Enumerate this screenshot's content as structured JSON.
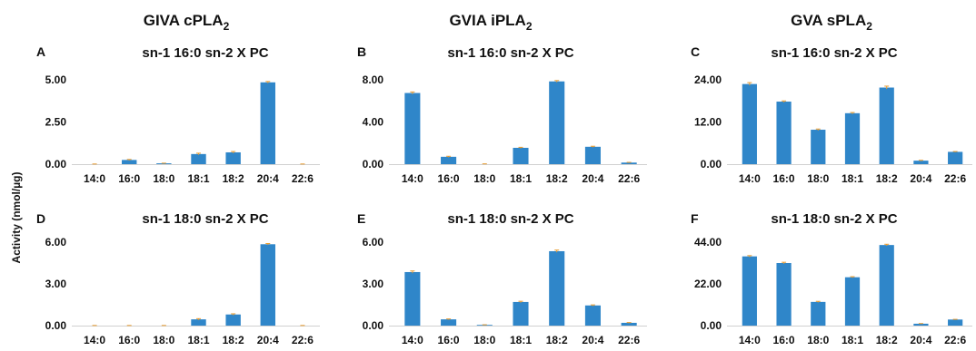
{
  "figure": {
    "ylabel": "Activity (nmol/µg)",
    "columns": [
      {
        "title_main": "GIVA cPLA",
        "title_sub": "2"
      },
      {
        "title_main": "GVIA iPLA",
        "title_sub": "2"
      },
      {
        "title_main": "GVA sPLA",
        "title_sub": "2"
      }
    ],
    "bar_color": "#2f86c9",
    "error_color": "#e69a2e"
  },
  "chart_data": [
    {
      "type": "bar",
      "panel": "A",
      "title": "sn-1 16:0 sn-2 X PC",
      "categories": [
        "14:0",
        "16:0",
        "18:0",
        "18:1",
        "18:2",
        "20:4",
        "22:6"
      ],
      "values": [
        0.0,
        0.25,
        0.05,
        0.6,
        0.7,
        4.85,
        0.0
      ],
      "errors": [
        0.01,
        0.03,
        0.01,
        0.05,
        0.05,
        0.05,
        0.01
      ],
      "yticks": [
        "0.00",
        "2.50",
        "5.00"
      ],
      "ylim": [
        0,
        5
      ]
    },
    {
      "type": "bar",
      "panel": "B",
      "title": "sn-1 16:0 sn-2 X PC",
      "categories": [
        "14:0",
        "16:0",
        "18:0",
        "18:1",
        "18:2",
        "20:4",
        "22:6"
      ],
      "values": [
        6.75,
        0.7,
        0.02,
        1.55,
        7.85,
        1.65,
        0.15
      ],
      "errors": [
        0.1,
        0.05,
        0.01,
        0.05,
        0.08,
        0.05,
        0.02
      ],
      "yticks": [
        "0.00",
        "4.00",
        "8.00"
      ],
      "ylim": [
        0,
        8
      ]
    },
    {
      "type": "bar",
      "panel": "C",
      "title": "sn-1 16:0 sn-2 X PC",
      "categories": [
        "14:0",
        "16:0",
        "18:0",
        "18:1",
        "18:2",
        "20:4",
        "22:6"
      ],
      "values": [
        22.8,
        17.8,
        9.8,
        14.5,
        21.8,
        1.0,
        3.5
      ],
      "errors": [
        0.4,
        0.2,
        0.2,
        0.2,
        0.4,
        0.1,
        0.1
      ],
      "yticks": [
        "0.00",
        "12.00",
        "24.00"
      ],
      "ylim": [
        0,
        24
      ]
    },
    {
      "type": "bar",
      "panel": "D",
      "title": "sn-1 18:0 sn-2 X PC",
      "categories": [
        "14:0",
        "16:0",
        "18:0",
        "18:1",
        "18:2",
        "20:4",
        "22:6"
      ],
      "values": [
        0.0,
        0.0,
        0.0,
        0.45,
        0.8,
        5.85,
        0.0
      ],
      "errors": [
        0.01,
        0.01,
        0.01,
        0.05,
        0.05,
        0.05,
        0.01
      ],
      "yticks": [
        "0.00",
        "3.00",
        "6.00"
      ],
      "ylim": [
        0,
        6
      ]
    },
    {
      "type": "bar",
      "panel": "E",
      "title": "sn-1 18:0 sn-2 X PC",
      "categories": [
        "14:0",
        "16:0",
        "18:0",
        "18:1",
        "18:2",
        "20:4",
        "22:6"
      ],
      "values": [
        3.85,
        0.45,
        0.05,
        1.7,
        5.35,
        1.45,
        0.2
      ],
      "errors": [
        0.08,
        0.03,
        0.01,
        0.05,
        0.08,
        0.04,
        0.02
      ],
      "yticks": [
        "0.00",
        "3.00",
        "6.00"
      ],
      "ylim": [
        0,
        6
      ]
    },
    {
      "type": "bar",
      "panel": "F",
      "title": "sn-1 18:0 sn-2 X PC",
      "categories": [
        "14:0",
        "16:0",
        "18:0",
        "18:1",
        "18:2",
        "20:4",
        "22:6"
      ],
      "values": [
        36.5,
        33.0,
        12.5,
        25.5,
        42.5,
        1.0,
        3.2
      ],
      "errors": [
        0.4,
        0.4,
        0.3,
        0.3,
        0.4,
        0.1,
        0.1
      ],
      "yticks": [
        "0.00",
        "22.00",
        "44.00"
      ],
      "ylim": [
        0,
        44
      ]
    }
  ]
}
